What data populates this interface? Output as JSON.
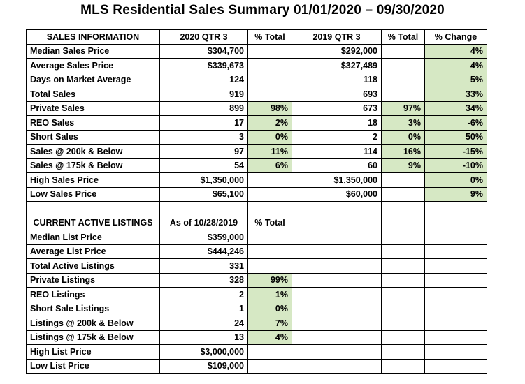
{
  "title": "MLS Residential Sales Summary 01/01/2020 – 09/30/2020",
  "colors": {
    "highlight": "#d6e8c4",
    "border": "#000000"
  },
  "sales": {
    "headers": [
      "SALES INFORMATION",
      "2020 QTR 3",
      "% Total",
      "2019 QTR 3",
      "% Total",
      "% Change"
    ],
    "rows": [
      [
        "Median Sales Price",
        "$304,700",
        "",
        "$292,000",
        "",
        "4%"
      ],
      [
        "Average Sales Price",
        "$339,673",
        "",
        "$327,489",
        "",
        "4%"
      ],
      [
        "Days on Market Average",
        "124",
        "",
        "118",
        "",
        "5%"
      ],
      [
        "Total Sales",
        "919",
        "",
        "693",
        "",
        "33%"
      ],
      [
        "Private Sales",
        "899",
        "98%",
        "673",
        "97%",
        "34%"
      ],
      [
        "REO Sales",
        "17",
        "2%",
        "18",
        "3%",
        "-6%"
      ],
      [
        "Short Sales",
        "3",
        "0%",
        "2",
        "0%",
        "50%"
      ],
      [
        "Sales @ 200k & Below",
        "97",
        "11%",
        "114",
        "16%",
        "-15%"
      ],
      [
        "Sales @ 175k & Below",
        "54",
        "6%",
        "60",
        "9%",
        "-10%"
      ],
      [
        "High Sales Price",
        "$1,350,000",
        "",
        "$1,350,000",
        "",
        "0%"
      ],
      [
        "Low Sales Price",
        "$65,100",
        "",
        "$60,000",
        "",
        "9%"
      ]
    ]
  },
  "listings": {
    "headers": [
      "CURRENT ACTIVE LISTINGS",
      "As of 10/28/2019",
      "% Total"
    ],
    "rows": [
      [
        "Median List Price",
        "$359,000",
        ""
      ],
      [
        "Average List Price",
        "$444,246",
        ""
      ],
      [
        "Total Active Listings",
        "331",
        ""
      ],
      [
        "Private Listings",
        "328",
        "99%"
      ],
      [
        "REO Listings",
        "2",
        "1%"
      ],
      [
        "Short Sale Listings",
        "1",
        "0%"
      ],
      [
        "Listings @ 200k & Below",
        "24",
        "7%"
      ],
      [
        "Listings @ 175k & Below",
        "13",
        "4%"
      ],
      [
        "High List Price",
        "$3,000,000",
        ""
      ],
      [
        "Low List Price",
        "$109,000",
        ""
      ]
    ]
  }
}
